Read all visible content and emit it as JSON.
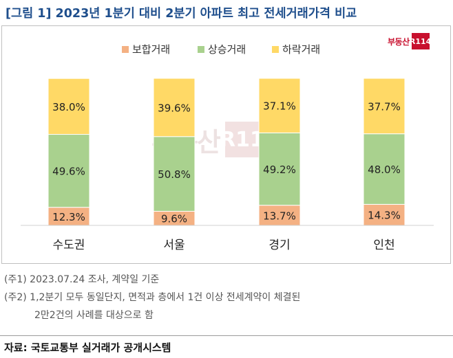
{
  "title": "[그림 1] 2023년 1분기 대비 2분기 아파트 최고 전세거래가격 비교",
  "logo": {
    "text": "부동산",
    "box": "R114",
    "icon": "r114-logo-icon",
    "color": "#c8102e"
  },
  "watermark": {
    "text": "부동산",
    "box": "R114"
  },
  "chart_data": {
    "type": "bar",
    "stacked": true,
    "categories": [
      "수도권",
      "서울",
      "경기",
      "인천"
    ],
    "series": [
      {
        "name": "보합거래",
        "values": [
          12.3,
          9.6,
          13.7,
          14.3
        ],
        "color": "#f4b183"
      },
      {
        "name": "상승거래",
        "values": [
          49.6,
          50.8,
          49.2,
          48.0
        ],
        "color": "#a9d18e"
      },
      {
        "name": "하락거래",
        "values": [
          38.0,
          39.6,
          37.1,
          37.7
        ],
        "color": "#ffd966"
      }
    ],
    "value_suffix": "%",
    "ylim": [
      0,
      100
    ],
    "legend_position": "top",
    "grid": false
  },
  "notes": [
    "(주1) 2023.07.24 조사, 계약일 기준",
    "(주2) 1,2분기 모두 동일단지, 면적과 층에서 1건 이상 전세계약이 체결된",
    "2만2건의 사례를 대상으로 함"
  ],
  "source": "자료: 국토교통부 실거래가 공개시스템"
}
